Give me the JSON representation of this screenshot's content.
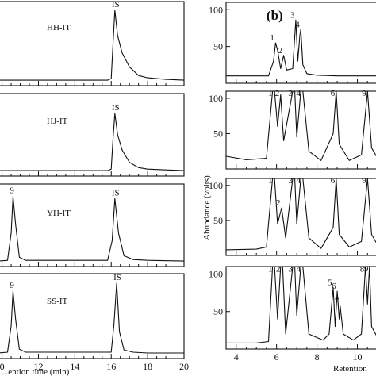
{
  "chart_data": [
    {
      "type": "line",
      "panel": "a",
      "xlabel": "...ention time (min)",
      "xlim": [
        9.8,
        20
      ],
      "x_ticks": [
        "0",
        "12",
        "14",
        "16",
        "18",
        "20"
      ],
      "subplots": [
        {
          "name": "HH-IT",
          "annotations": [
            {
              "label": "IS",
              "x": 16.2
            }
          ],
          "series": [
            {
              "x": [
                9.8,
                15.8,
                16.0,
                16.1,
                16.2,
                16.35,
                16.6,
                17.0,
                17.5,
                18.0,
                19.0,
                20.0
              ],
              "values": [
                0.03,
                0.03,
                0.05,
                0.5,
                0.93,
                0.6,
                0.38,
                0.2,
                0.09,
                0.06,
                0.04,
                0.03
              ]
            }
          ]
        },
        {
          "name": "HJ-IT",
          "annotations": [
            {
              "label": "IS",
              "x": 16.2
            }
          ],
          "series": [
            {
              "x": [
                9.8,
                15.8,
                16.0,
                16.1,
                16.2,
                16.35,
                16.6,
                17.0,
                17.5,
                18.0,
                19.0,
                20.0
              ],
              "values": [
                0.03,
                0.03,
                0.05,
                0.45,
                0.78,
                0.5,
                0.3,
                0.14,
                0.07,
                0.05,
                0.04,
                0.03
              ]
            }
          ]
        },
        {
          "name": "YH-IT",
          "annotations": [
            {
              "label": "9",
              "x": 10.6
            },
            {
              "label": "IS",
              "x": 16.2
            }
          ],
          "series": [
            {
              "x": [
                9.8,
                10.3,
                10.5,
                10.6,
                10.75,
                10.95,
                11.3,
                15.8,
                16.05,
                16.2,
                16.4,
                16.7,
                17.2,
                18.0,
                20.0
              ],
              "values": [
                0.03,
                0.04,
                0.4,
                0.88,
                0.5,
                0.08,
                0.04,
                0.04,
                0.3,
                0.85,
                0.4,
                0.1,
                0.05,
                0.04,
                0.03
              ]
            }
          ]
        },
        {
          "name": "SS-IT",
          "annotations": [
            {
              "label": "9",
              "x": 10.6
            },
            {
              "label": "IS",
              "x": 16.3
            }
          ],
          "series": [
            {
              "x": [
                9.8,
                10.3,
                10.5,
                10.6,
                10.75,
                10.95,
                11.3,
                16.0,
                16.15,
                16.3,
                16.45,
                16.7,
                17.2,
                18.0,
                20.0
              ],
              "values": [
                0.03,
                0.04,
                0.38,
                0.82,
                0.45,
                0.08,
                0.04,
                0.04,
                0.4,
                0.92,
                0.3,
                0.07,
                0.04,
                0.03,
                0.03
              ]
            }
          ]
        }
      ]
    },
    {
      "type": "line",
      "panel": "b",
      "panel_label": "(b)",
      "xlabel": "Retention",
      "ylabel": "Abundance (volts)",
      "xlim": [
        3.5,
        11
      ],
      "x_ticks": [
        "4",
        "6",
        "8",
        "10"
      ],
      "subplots": [
        {
          "ylim": [
            0,
            110
          ],
          "y_ticks": [
            "50",
            "100"
          ],
          "annotations": [
            {
              "label": "1",
              "x": 5.95,
              "y": 55
            },
            {
              "label": "2",
              "x": 6.35,
              "y": 38
            },
            {
              "label": "3",
              "x": 6.95,
              "y": 86
            },
            {
              "label": "4",
              "x": 7.2,
              "y": 73
            }
          ],
          "series": [
            {
              "x": [
                3.5,
                5.6,
                5.85,
                5.95,
                6.05,
                6.2,
                6.35,
                6.5,
                6.8,
                6.95,
                7.05,
                7.15,
                7.2,
                7.3,
                7.5,
                8.0,
                9.0,
                10.0,
                11.0
              ],
              "values": [
                10,
                10,
                30,
                55,
                45,
                20,
                38,
                18,
                20,
                86,
                30,
                65,
                73,
                25,
                13,
                11,
                10,
                10,
                10
              ]
            }
          ]
        },
        {
          "ylim": [
            0,
            110
          ],
          "y_ticks": [
            "50",
            "100"
          ],
          "annotations": [
            {
              "label": "1",
              "x": 5.85
            },
            {
              "label": "2",
              "x": 6.2
            },
            {
              "label": "3",
              "x": 6.85
            },
            {
              "label": "4",
              "x": 7.25
            },
            {
              "label": "6",
              "x": 8.95
            },
            {
              "label": "9",
              "x": 10.5
            }
          ],
          "series": [
            {
              "x": [
                3.5,
                4.5,
                5.5,
                5.8,
                5.9,
                6.05,
                6.2,
                6.35,
                6.8,
                6.9,
                7.0,
                7.2,
                7.3,
                7.6,
                8.2,
                8.8,
                8.95,
                9.1,
                9.6,
                10.2,
                10.5,
                10.7,
                11.0
              ],
              "values": [
                18,
                13,
                15,
                112,
                112,
                60,
                105,
                40,
                112,
                112,
                45,
                112,
                112,
                25,
                12,
                50,
                112,
                35,
                12,
                20,
                112,
                30,
                15
              ]
            }
          ]
        },
        {
          "ylim": [
            0,
            110
          ],
          "y_ticks": [
            "50",
            "100"
          ],
          "annotations": [
            {
              "label": "1",
              "x": 5.85
            },
            {
              "label": "2",
              "x": 6.25,
              "y": 68
            },
            {
              "label": "3",
              "x": 6.85
            },
            {
              "label": "4",
              "x": 7.25
            },
            {
              "label": "6",
              "x": 8.95
            },
            {
              "label": "9",
              "x": 10.5
            }
          ],
          "series": [
            {
              "x": [
                3.5,
                5.0,
                5.5,
                5.8,
                5.9,
                6.05,
                6.25,
                6.45,
                6.8,
                6.9,
                7.0,
                7.2,
                7.3,
                7.6,
                8.2,
                8.8,
                8.95,
                9.1,
                9.6,
                10.2,
                10.5,
                10.7,
                11.0
              ],
              "values": [
                8,
                9,
                12,
                112,
                112,
                45,
                68,
                25,
                112,
                112,
                45,
                112,
                112,
                25,
                10,
                40,
                112,
                30,
                12,
                20,
                112,
                30,
                15
              ]
            }
          ]
        },
        {
          "ylim": [
            0,
            110
          ],
          "y_ticks": [
            "50",
            "100"
          ],
          "annotations": [
            {
              "label": "1",
              "x": 5.85
            },
            {
              "label": "2",
              "x": 6.25
            },
            {
              "label": "3",
              "x": 6.85
            },
            {
              "label": "4",
              "x": 7.25
            },
            {
              "label": "5",
              "x": 8.8,
              "y": 82
            },
            {
              "label": "6",
              "x": 9.0,
              "y": 77
            },
            {
              "label": "7",
              "x": 9.15,
              "y": 57
            },
            {
              "label": "8",
              "x": 10.4
            },
            {
              "label": "9",
              "x": 10.6
            }
          ],
          "series": [
            {
              "x": [
                3.5,
                5.0,
                5.6,
                5.8,
                5.9,
                6.05,
                6.2,
                6.3,
                6.45,
                6.8,
                6.9,
                7.0,
                7.2,
                7.3,
                7.6,
                8.3,
                8.6,
                8.8,
                8.9,
                9.0,
                9.1,
                9.15,
                9.3,
                9.8,
                10.2,
                10.4,
                10.5,
                10.6,
                10.7,
                11.0
              ],
              "values": [
                8,
                8,
                10,
                112,
                112,
                40,
                112,
                112,
                20,
                112,
                112,
                45,
                112,
                112,
                20,
                12,
                20,
                82,
                30,
                77,
                40,
                57,
                20,
                12,
                20,
                112,
                60,
                112,
                30,
                15
              ]
            }
          ]
        }
      ]
    }
  ]
}
